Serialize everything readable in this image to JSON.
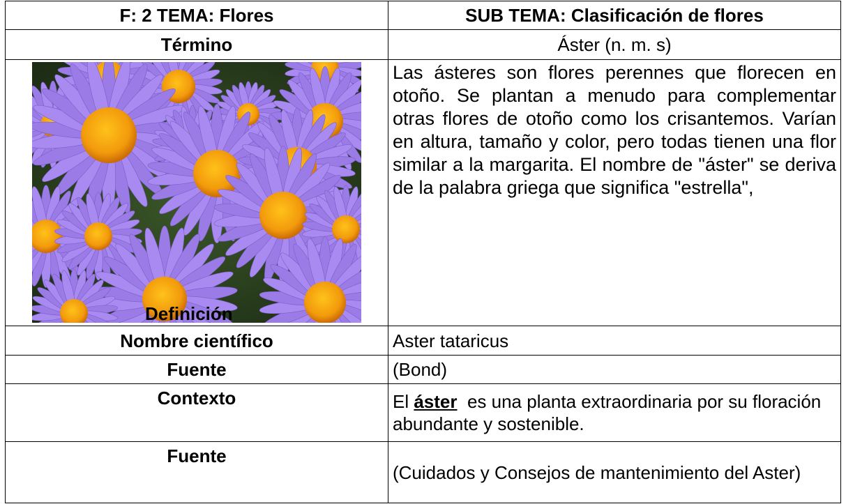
{
  "header": {
    "left": "F: 2  TEMA: Flores",
    "right": "SUB TEMA: Clasificación de flores"
  },
  "term": {
    "label": "Término",
    "value": "Áster (n. m. s)"
  },
  "definition": {
    "label": "Definición",
    "text": "Las ásteres son flores perennes que florecen en otoño. Se plantan a menudo para complementar otras flores de otoño como los crisantemos. Varían en altura, tamaño y color, pero todas tienen una flor similar a la margarita. El nombre de \"áster\" se deriva de la palabra griega que significa \"estrella\","
  },
  "scientific_name": {
    "label": "Nombre científico",
    "value": "Aster tataricus"
  },
  "source_1": {
    "label": "Fuente",
    "value": "(Bond)"
  },
  "context": {
    "label": "Contexto",
    "before": "El ",
    "term": "áster",
    "after": "  es una planta extraordinaria por su floración abundante y sostenible."
  },
  "source_2": {
    "label": "Fuente",
    "value": "(Cuidados y Consejos de mantenimiento del Aster)"
  }
}
